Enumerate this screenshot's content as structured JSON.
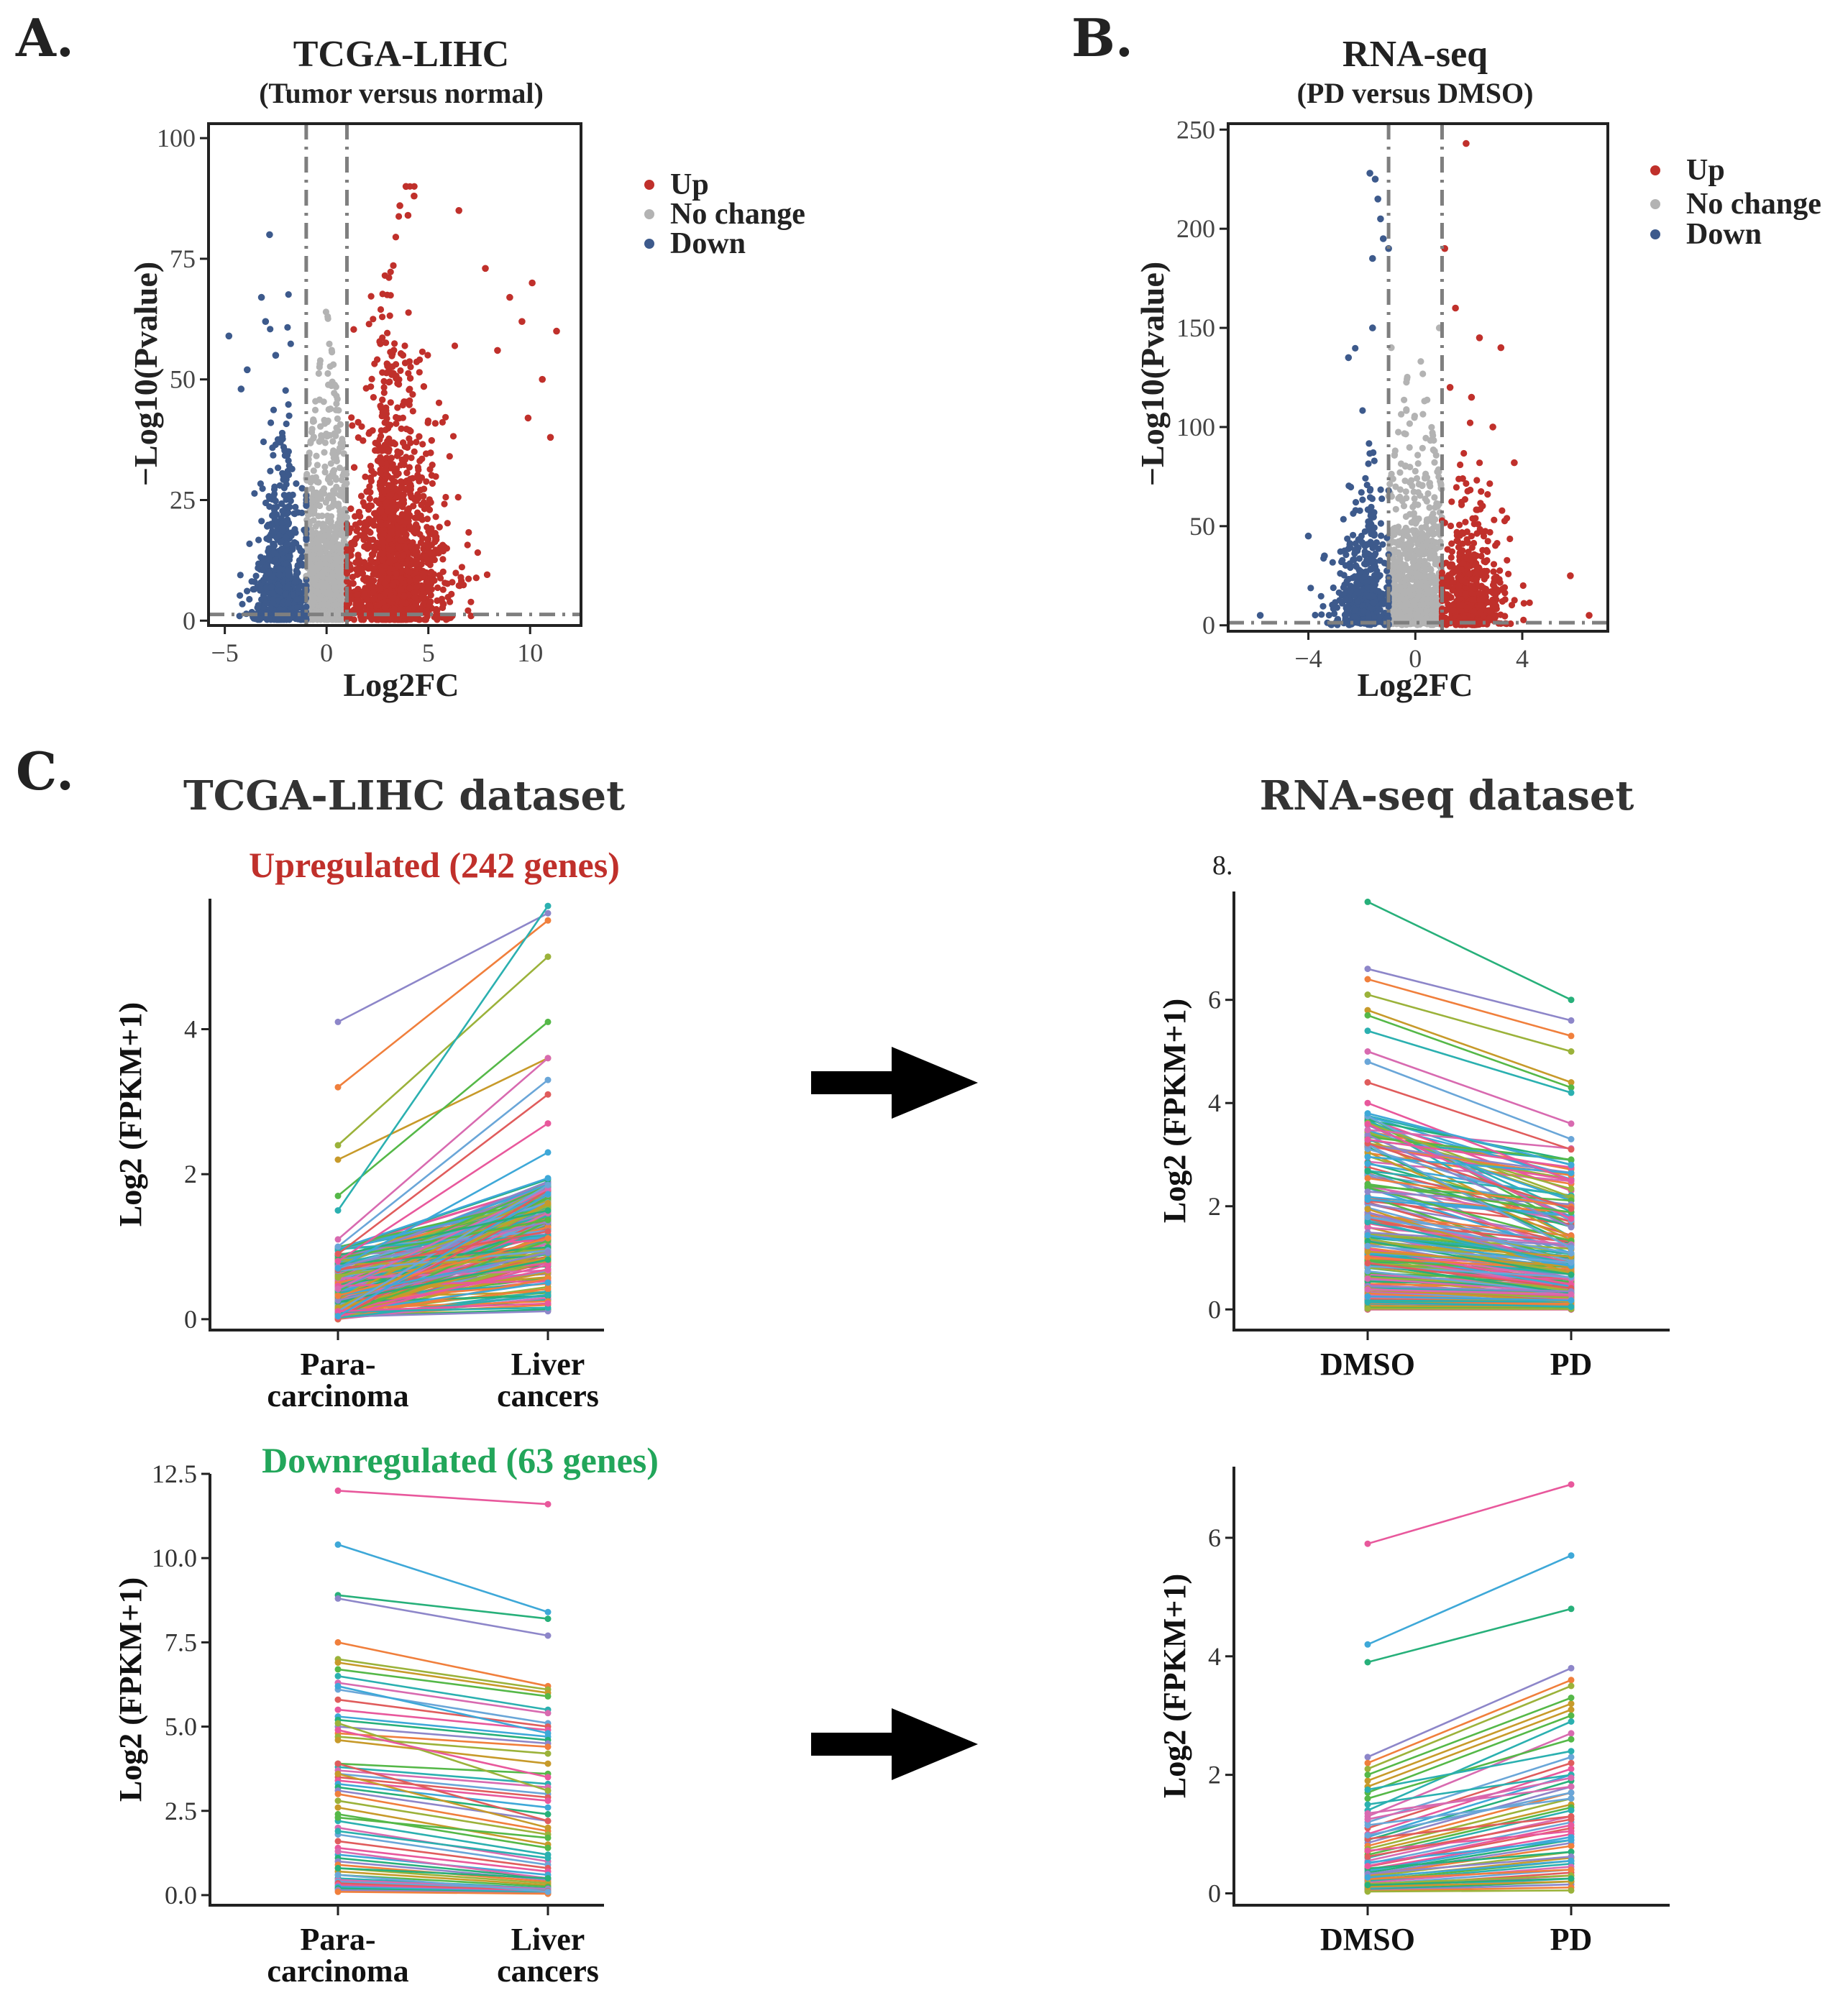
{
  "panel_labels": {
    "a": "A.",
    "b": "B.",
    "c": "C."
  },
  "colors": {
    "up": "#c0302b",
    "nochange": "#b3b3b3",
    "down": "#3d5a8c",
    "upregulated_text": "#c0302b",
    "downregulated_text": "#22a65a",
    "line_palette": [
      "#e8589c",
      "#3ea8d8",
      "#27b07a",
      "#8d86c9",
      "#f07f3c",
      "#9bb23a",
      "#c79a2a",
      "#55b848",
      "#2bb0b0",
      "#d86ab0",
      "#6aa6d8",
      "#e05c5c"
    ]
  },
  "legend": {
    "up": "Up",
    "nochange": "No change",
    "down": "Down"
  },
  "section_c": {
    "left_title": "TCGA-LIHC dataset",
    "right_title": "RNA-seq dataset",
    "up_label": "Upregulated (242 genes)",
    "down_label": "Downregulated (63 genes)",
    "stray_tick": "8."
  },
  "chart_data": [
    {
      "id": "volcano_tcga",
      "type": "scatter",
      "title": "TCGA-LIHC",
      "subtitle": "(Tumor versus normal)",
      "xlabel": "Log2FC",
      "ylabel": "−Log10(Pvalue)",
      "xlim": [
        -5.8,
        12.5
      ],
      "ylim": [
        -1,
        103
      ],
      "xticks": [
        -5,
        0,
        5,
        10
      ],
      "xtick_labels": [
        "−5",
        "0",
        "5",
        "10"
      ],
      "yticks": [
        0,
        25,
        50,
        75,
        100
      ],
      "ytick_labels": [
        "0",
        "25",
        "50",
        "75",
        "100"
      ],
      "fc_threshold": [
        -1,
        1
      ],
      "p_threshold": 1.3,
      "series": [
        {
          "name": "Up",
          "color_key": "up",
          "x_range": [
            1.0,
            11.5
          ],
          "x_center": 2.6,
          "x_spread": 1.6,
          "y_max": 90,
          "y_scale": 14,
          "n_points": 2300,
          "outliers": [
            [
              3.9,
              90
            ],
            [
              4.3,
              88
            ],
            [
              3.6,
              86
            ],
            [
              4.0,
              84
            ],
            [
              6.5,
              85
            ],
            [
              11.3,
              60
            ],
            [
              10.1,
              70
            ],
            [
              7.8,
              73
            ],
            [
              9.0,
              67
            ],
            [
              9.6,
              62
            ],
            [
              8.4,
              56
            ],
            [
              10.6,
              50
            ],
            [
              9.9,
              42
            ],
            [
              11.0,
              38
            ]
          ]
        },
        {
          "name": "No change",
          "color_key": "nochange",
          "x_range": [
            -1.0,
            1.0
          ],
          "y_max": 65,
          "y_scale": 12,
          "n_points": 1100,
          "outliers": []
        },
        {
          "name": "Down",
          "color_key": "down",
          "x_range": [
            -5.0,
            -1.0
          ],
          "x_center": -1.8,
          "x_spread": 0.9,
          "y_max": 82,
          "y_scale": 10,
          "n_points": 950,
          "outliers": [
            [
              -2.8,
              80
            ],
            [
              -3.2,
              67
            ],
            [
              -4.8,
              59
            ],
            [
              -3.0,
              62
            ],
            [
              -2.5,
              55
            ],
            [
              -4.2,
              48
            ],
            [
              -3.9,
              52
            ]
          ]
        }
      ]
    },
    {
      "id": "volcano_rnaseq",
      "type": "scatter",
      "title": "RNA-seq",
      "subtitle": "(PD versus DMSO)",
      "xlabel": "Log2FC",
      "ylabel": "−Log10(Pvalue)",
      "xlim": [
        -7.0,
        7.2
      ],
      "ylim": [
        -3,
        253
      ],
      "xticks": [
        -4,
        0,
        4
      ],
      "xtick_labels": [
        "−4",
        "0",
        "4"
      ],
      "yticks": [
        0,
        50,
        100,
        150,
        200,
        250
      ],
      "ytick_labels": [
        "0",
        "50",
        "100",
        "150",
        "200",
        "250"
      ],
      "fc_threshold": [
        -1,
        1
      ],
      "p_threshold": 1.3,
      "series": [
        {
          "name": "Up",
          "color_key": "up",
          "x_range": [
            1.0,
            6.8
          ],
          "x_center": 1.6,
          "x_spread": 0.9,
          "y_max": 245,
          "y_scale": 18,
          "n_points": 650,
          "outliers": [
            [
              1.9,
              243
            ],
            [
              1.1,
              190
            ],
            [
              1.5,
              160
            ],
            [
              2.4,
              145
            ],
            [
              3.2,
              140
            ],
            [
              3.7,
              82
            ],
            [
              5.8,
              25
            ],
            [
              6.5,
              5
            ],
            [
              1.3,
              120
            ],
            [
              2.1,
              115
            ],
            [
              2.9,
              100
            ]
          ]
        },
        {
          "name": "No change",
          "color_key": "nochange",
          "x_range": [
            -1.0,
            1.0
          ],
          "y_max": 150,
          "y_scale": 25,
          "n_points": 900,
          "outliers": [
            [
              0.9,
              150
            ],
            [
              -0.9,
              140
            ]
          ]
        },
        {
          "name": "Down",
          "color_key": "down",
          "x_range": [
            -6.8,
            -1.0
          ],
          "x_center": -1.5,
          "x_spread": 0.8,
          "y_max": 230,
          "y_scale": 18,
          "n_points": 520,
          "outliers": [
            [
              -1.7,
              228
            ],
            [
              -1.5,
              225
            ],
            [
              -1.4,
              215
            ],
            [
              -1.3,
              205
            ],
            [
              -1.2,
              195
            ],
            [
              -1.6,
              185
            ],
            [
              -1.0,
              190
            ],
            [
              -2.5,
              135
            ],
            [
              -1.6,
              150
            ],
            [
              -4.0,
              45
            ],
            [
              -3.4,
              35
            ],
            [
              -5.8,
              5
            ]
          ]
        }
      ]
    },
    {
      "id": "tcga_up",
      "type": "line",
      "categories": [
        "Para-\ncarcinoma",
        "Liver\ncancers"
      ],
      "xtick_labels": [
        [
          "Para-",
          "carcinoma"
        ],
        [
          "Liver",
          "cancers"
        ]
      ],
      "ylabel": "Log2 (FPKM+1)",
      "ylim": [
        -0.15,
        5.8
      ],
      "yticks": [
        0,
        2,
        4
      ],
      "ytick_labels": [
        "0",
        "2",
        "4"
      ],
      "n_series": 242,
      "highlight_pairs": [
        [
          4.1,
          5.6
        ],
        [
          3.2,
          5.5
        ],
        [
          2.4,
          5.0
        ],
        [
          2.2,
          3.6
        ],
        [
          1.7,
          4.1
        ],
        [
          1.5,
          5.7
        ],
        [
          1.1,
          3.6
        ],
        [
          1.0,
          3.3
        ],
        [
          0.9,
          3.1
        ],
        [
          0.8,
          2.7
        ],
        [
          0.7,
          2.3
        ]
      ],
      "bulk_start_range": [
        0.0,
        1.0
      ],
      "bulk_end_range": [
        0.0,
        2.0
      ]
    },
    {
      "id": "rnaseq_up",
      "type": "line",
      "categories": [
        "DMSO",
        "PD"
      ],
      "xtick_labels": [
        [
          "DMSO"
        ],
        [
          "PD"
        ]
      ],
      "ylabel": "Log2 (FPKM+1)",
      "ylim": [
        -0.4,
        8.1
      ],
      "yticks": [
        0,
        2,
        4,
        6
      ],
      "ytick_labels": [
        "0",
        "2",
        "4",
        "6"
      ],
      "n_series": 242,
      "highlight_pairs": [
        [
          7.9,
          6.0
        ],
        [
          6.6,
          5.6
        ],
        [
          6.4,
          5.3
        ],
        [
          6.1,
          5.0
        ],
        [
          5.8,
          4.4
        ],
        [
          5.7,
          4.3
        ],
        [
          5.4,
          4.2
        ],
        [
          5.0,
          3.6
        ],
        [
          4.8,
          3.3
        ],
        [
          4.4,
          3.1
        ],
        [
          4.0,
          2.5
        ],
        [
          3.8,
          2.8
        ]
      ],
      "bulk_start_range": [
        0.0,
        3.8
      ],
      "bulk_end_range": [
        0.0,
        2.5
      ]
    },
    {
      "id": "tcga_down",
      "type": "line",
      "categories": [
        "Para-\ncarcinoma",
        "Liver\ncancers"
      ],
      "xtick_labels": [
        [
          "Para-",
          "carcinoma"
        ],
        [
          "Liver",
          "cancers"
        ]
      ],
      "ylabel": "Log2 (FPKM+1)",
      "ylim": [
        -0.3,
        12.5
      ],
      "yticks": [
        0.0,
        2.5,
        5.0,
        7.5,
        10.0,
        12.5
      ],
      "ytick_labels": [
        "0.0",
        "2.5",
        "5.0",
        "7.5",
        "10.0",
        "12.5"
      ],
      "n_series": 63,
      "pairs": [
        [
          12.0,
          11.6
        ],
        [
          10.4,
          8.4
        ],
        [
          8.9,
          8.2
        ],
        [
          8.8,
          7.7
        ],
        [
          7.5,
          6.2
        ],
        [
          7.0,
          6.1
        ],
        [
          6.9,
          6.0
        ],
        [
          6.7,
          5.9
        ],
        [
          6.5,
          5.5
        ],
        [
          6.3,
          5.4
        ],
        [
          6.1,
          5.1
        ],
        [
          5.8,
          5.0
        ],
        [
          5.5,
          4.9
        ],
        [
          5.3,
          4.7
        ],
        [
          5.2,
          4.6
        ],
        [
          5.0,
          4.5
        ],
        [
          4.8,
          4.4
        ],
        [
          4.7,
          4.2
        ],
        [
          4.6,
          3.9
        ],
        [
          3.9,
          3.6
        ],
        [
          3.8,
          3.3
        ],
        [
          3.7,
          3.2
        ],
        [
          3.6,
          3.0
        ],
        [
          3.5,
          2.9
        ],
        [
          3.4,
          2.8
        ],
        [
          3.3,
          2.6
        ],
        [
          3.2,
          2.4
        ],
        [
          3.1,
          2.2
        ],
        [
          3.0,
          1.9
        ],
        [
          2.8,
          1.8
        ],
        [
          2.6,
          1.5
        ],
        [
          2.4,
          1.4
        ],
        [
          2.2,
          1.2
        ],
        [
          2.0,
          1.0
        ],
        [
          1.8,
          0.9
        ],
        [
          1.6,
          0.8
        ],
        [
          1.4,
          0.7
        ],
        [
          1.2,
          0.6
        ],
        [
          1.1,
          0.5
        ],
        [
          1.0,
          0.45
        ],
        [
          0.9,
          0.4
        ],
        [
          0.8,
          0.35
        ],
        [
          0.7,
          0.3
        ],
        [
          0.6,
          0.25
        ],
        [
          0.5,
          0.2
        ],
        [
          0.45,
          0.18
        ],
        [
          0.4,
          0.15
        ],
        [
          0.35,
          0.12
        ],
        [
          0.3,
          0.1
        ],
        [
          0.25,
          0.08
        ],
        [
          0.2,
          0.06
        ],
        [
          0.15,
          0.05
        ],
        [
          0.1,
          0.04
        ],
        [
          5.1,
          3.1
        ],
        [
          3.6,
          2.0
        ],
        [
          2.3,
          1.7
        ],
        [
          1.9,
          1.1
        ],
        [
          1.3,
          0.5
        ],
        [
          0.6,
          0.1
        ],
        [
          3.9,
          2.2
        ],
        [
          4.9,
          3.5
        ],
        [
          6.2,
          4.8
        ],
        [
          0.8,
          0.5
        ]
      ]
    },
    {
      "id": "rnaseq_down",
      "type": "line",
      "categories": [
        "DMSO",
        "PD"
      ],
      "xtick_labels": [
        [
          "DMSO"
        ],
        [
          "PD"
        ]
      ],
      "ylabel": "Log2 (FPKM+1)",
      "ylim": [
        -0.2,
        7.2
      ],
      "yticks": [
        0,
        2,
        4,
        6
      ],
      "ytick_labels": [
        "0",
        "2",
        "4",
        "6"
      ],
      "n_series": 63,
      "pairs": [
        [
          5.9,
          6.9
        ],
        [
          4.2,
          5.7
        ],
        [
          3.9,
          4.8
        ],
        [
          2.3,
          3.8
        ],
        [
          2.2,
          3.6
        ],
        [
          2.1,
          3.5
        ],
        [
          1.8,
          3.1
        ],
        [
          1.7,
          3.0
        ],
        [
          1.4,
          2.9
        ],
        [
          1.3,
          2.7
        ],
        [
          1.2,
          2.3
        ],
        [
          1.1,
          2.2
        ],
        [
          1.0,
          2.1
        ],
        [
          0.95,
          2.0
        ],
        [
          0.9,
          1.9
        ],
        [
          0.85,
          1.8
        ],
        [
          0.8,
          1.7
        ],
        [
          0.75,
          1.6
        ],
        [
          0.7,
          1.5
        ],
        [
          0.65,
          1.45
        ],
        [
          0.6,
          1.4
        ],
        [
          0.55,
          1.3
        ],
        [
          0.5,
          1.2
        ],
        [
          0.45,
          1.1
        ],
        [
          0.4,
          1.0
        ],
        [
          0.38,
          0.95
        ],
        [
          0.35,
          0.9
        ],
        [
          0.32,
          0.85
        ],
        [
          0.3,
          0.8
        ],
        [
          0.28,
          0.7
        ],
        [
          0.25,
          0.6
        ],
        [
          0.22,
          0.55
        ],
        [
          0.2,
          0.5
        ],
        [
          0.18,
          0.45
        ],
        [
          0.15,
          0.4
        ],
        [
          0.12,
          0.35
        ],
        [
          0.1,
          0.3
        ],
        [
          0.08,
          0.25
        ],
        [
          0.06,
          0.2
        ],
        [
          0.05,
          0.15
        ],
        [
          0.04,
          0.1
        ],
        [
          0.03,
          0.05
        ],
        [
          1.9,
          3.2
        ],
        [
          1.6,
          2.6
        ],
        [
          1.5,
          2.0
        ],
        [
          1.35,
          1.8
        ],
        [
          1.15,
          1.6
        ],
        [
          0.92,
          1.3
        ],
        [
          0.72,
          1.05
        ],
        [
          0.52,
          0.9
        ],
        [
          0.42,
          0.7
        ],
        [
          0.33,
          0.62
        ],
        [
          0.24,
          0.4
        ],
        [
          0.16,
          0.3
        ],
        [
          0.11,
          0.2
        ],
        [
          2.0,
          3.3
        ],
        [
          1.75,
          2.4
        ],
        [
          1.25,
          1.95
        ],
        [
          0.98,
          1.7
        ],
        [
          0.62,
          1.25
        ],
        [
          0.46,
          1.15
        ],
        [
          0.27,
          0.55
        ],
        [
          0.14,
          0.25
        ]
      ]
    }
  ]
}
